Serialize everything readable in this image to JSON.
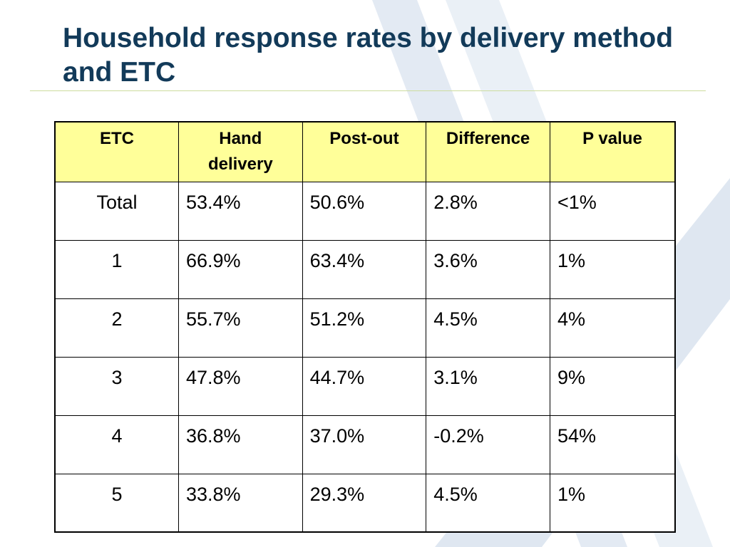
{
  "slide": {
    "title": "Household response rates by delivery method and ETC"
  },
  "table": {
    "headers": [
      "ETC",
      "Hand delivery",
      "Post-out",
      "Difference",
      "P value"
    ],
    "rows": [
      [
        "Total",
        "53.4%",
        "50.6%",
        "2.8%",
        "<1%"
      ],
      [
        "1",
        "66.9%",
        "63.4%",
        "3.6%",
        "1%"
      ],
      [
        "2",
        "55.7%",
        "51.2%",
        "4.5%",
        "4%"
      ],
      [
        "3",
        "47.8%",
        "44.7%",
        "3.1%",
        "9%"
      ],
      [
        "4",
        "36.8%",
        "37.0%",
        "-0.2%",
        "54%"
      ],
      [
        "5",
        "33.8%",
        "29.3%",
        "4.5%",
        "1%"
      ]
    ]
  },
  "colors": {
    "title": "#123a59",
    "header_background": "#ffff99",
    "title_rule": "#cddc9e",
    "watermark": "#dfe7f1"
  },
  "decoration": {
    "watermark_icon": "x-logo-watermark-icon"
  }
}
